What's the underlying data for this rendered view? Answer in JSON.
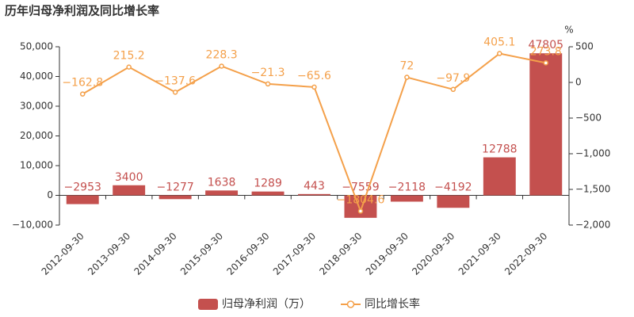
{
  "chart_data": {
    "type": "bar",
    "title": "历年归母净利润及同比增长率",
    "categories": [
      "2012-09-30",
      "2013-09-30",
      "2014-09-30",
      "2015-09-30",
      "2016-09-30",
      "2017-09-30",
      "2018-09-30",
      "2019-09-30",
      "2020-09-30",
      "2021-09-30",
      "2022-09-30"
    ],
    "series": [
      {
        "name": "归母净利润（万）",
        "type": "bar",
        "color": "#c4504e",
        "values": [
          -2953,
          3400,
          -1277,
          1638,
          1289,
          443,
          -7559,
          -2118,
          -4192,
          12788,
          47805
        ],
        "value_labels": [
          "−2953",
          "3400",
          "−1277",
          "1638",
          "1289",
          "443",
          "−7559",
          "−2118",
          "−4192",
          "12788",
          "47805"
        ]
      },
      {
        "name": "同比增长率",
        "type": "line",
        "axis": "y2",
        "color": "#f4a04a",
        "values": [
          -162.8,
          215.2,
          -137.6,
          228.3,
          -21.3,
          -65.6,
          -1804.6,
          72,
          -97.9,
          405.1,
          273.8
        ],
        "value_labels": [
          "−162.8",
          "215.2",
          "−137.6",
          "228.3",
          "−21.3",
          "−65.6",
          "−1804.6",
          "72",
          "−97.9",
          "405.1",
          "273.8"
        ]
      }
    ],
    "ylim": [
      -10000,
      50000
    ],
    "yticks": [
      {
        "value": -10000,
        "label": "−10,000"
      },
      0,
      {
        "value": 10000,
        "label": "10,000"
      },
      {
        "value": 20000,
        "label": "20,000"
      },
      {
        "value": 30000,
        "label": "30,000"
      },
      {
        "value": 40000,
        "label": "40,000"
      },
      {
        "value": 50000,
        "label": "50,000"
      }
    ],
    "y2label": "%",
    "y2lim": [
      -2000,
      500
    ],
    "y2ticks": [
      {
        "value": -2000,
        "label": "−2,000"
      },
      {
        "value": -1500,
        "label": "−1,500"
      },
      {
        "value": -1000,
        "label": "−1,000"
      },
      {
        "value": -500,
        "label": "−500"
      },
      0,
      500
    ],
    "legend": "bottom"
  }
}
